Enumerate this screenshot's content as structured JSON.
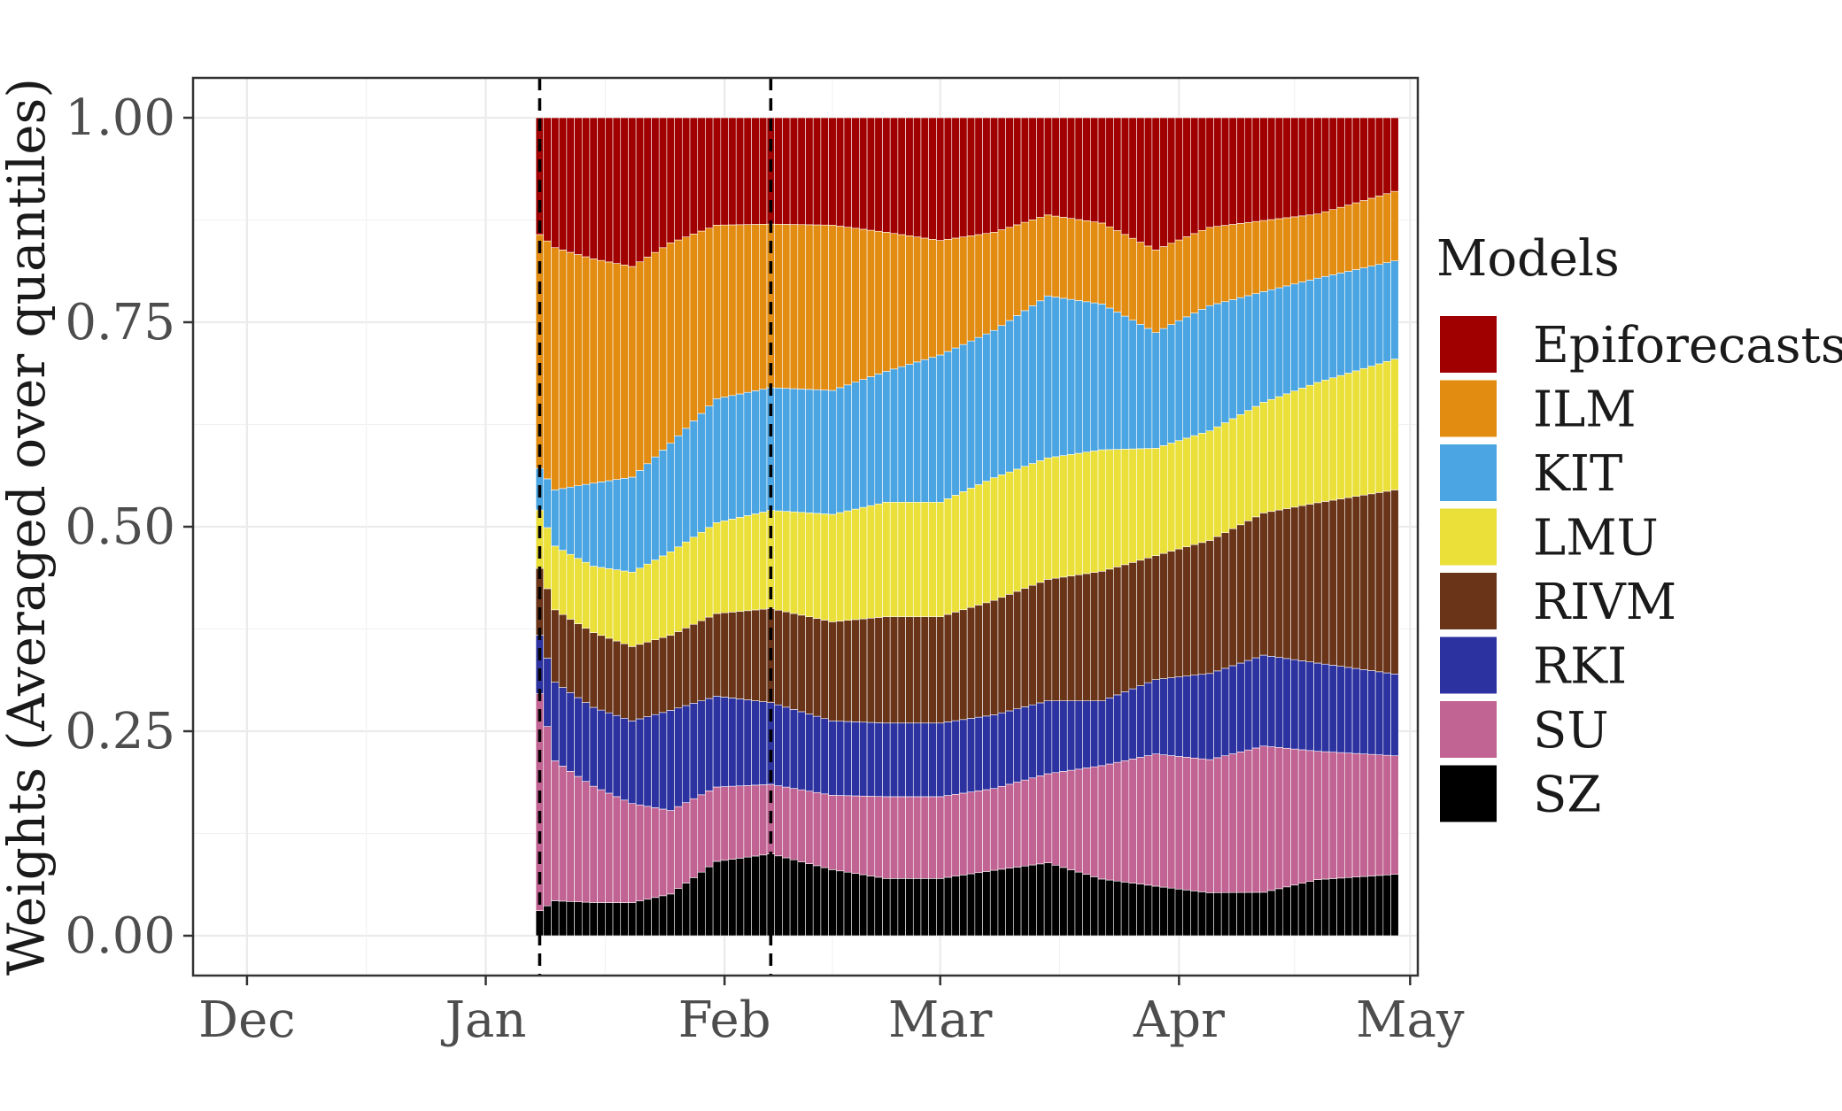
{
  "chart_data": {
    "type": "area",
    "subtype": "stacked-bar",
    "title": "",
    "xlabel": "",
    "ylabel": "Weights (Averaged over quantiles)",
    "ylim": [
      0,
      1
    ],
    "xlim": [
      "2020-11-24",
      "2021-05-02"
    ],
    "x_ticks": [
      {
        "date": "2020-12-01",
        "label": "Dec"
      },
      {
        "date": "2021-01-01",
        "label": "Jan"
      },
      {
        "date": "2021-02-01",
        "label": "Feb"
      },
      {
        "date": "2021-03-01",
        "label": "Mar"
      },
      {
        "date": "2021-04-01",
        "label": "Apr"
      },
      {
        "date": "2021-05-01",
        "label": "May"
      }
    ],
    "y_ticks": [
      0,
      0.25,
      0.5,
      0.75,
      1
    ],
    "y_tick_labels": [
      "0.00",
      "0.25",
      "0.50",
      "0.75",
      "1.00"
    ],
    "grid": true,
    "legend": {
      "title": "Models",
      "position": "right"
    },
    "vlines": [
      "2021-01-08",
      "2021-02-07"
    ],
    "x_start": "2021-01-08",
    "x_end": "2021-04-29",
    "series": [
      {
        "name": "SZ",
        "color": "#000000",
        "knots": [
          [
            "2021-01-08",
            0.03
          ],
          [
            "2021-01-10",
            0.04
          ],
          [
            "2021-01-20",
            0.04
          ],
          [
            "2021-01-25",
            0.05
          ],
          [
            "2021-01-31",
            0.09
          ],
          [
            "2021-02-07",
            0.1
          ],
          [
            "2021-02-15",
            0.08
          ],
          [
            "2021-02-22",
            0.07
          ],
          [
            "2021-03-01",
            0.07
          ],
          [
            "2021-03-08",
            0.08
          ],
          [
            "2021-03-15",
            0.09
          ],
          [
            "2021-03-22",
            0.07
          ],
          [
            "2021-03-29",
            0.06
          ],
          [
            "2021-04-05",
            0.055
          ],
          [
            "2021-04-12",
            0.055
          ],
          [
            "2021-04-19",
            0.07
          ],
          [
            "2021-04-29",
            0.075
          ]
        ]
      },
      {
        "name": "SU",
        "color": "#c16393",
        "knots": [
          [
            "2021-01-08",
            0.26
          ],
          [
            "2021-01-10",
            0.16
          ],
          [
            "2021-01-15",
            0.14
          ],
          [
            "2021-01-20",
            0.12
          ],
          [
            "2021-01-25",
            0.1
          ],
          [
            "2021-01-31",
            0.09
          ],
          [
            "2021-02-07",
            0.085
          ],
          [
            "2021-02-15",
            0.09
          ],
          [
            "2021-02-22",
            0.1
          ],
          [
            "2021-03-01",
            0.1
          ],
          [
            "2021-03-08",
            0.1
          ],
          [
            "2021-03-15",
            0.11
          ],
          [
            "2021-03-22",
            0.14
          ],
          [
            "2021-03-29",
            0.16
          ],
          [
            "2021-04-05",
            0.17
          ],
          [
            "2021-04-12",
            0.185
          ],
          [
            "2021-04-19",
            0.16
          ],
          [
            "2021-04-29",
            0.145
          ]
        ]
      },
      {
        "name": "RKI",
        "color": "#2c32a0",
        "knots": [
          [
            "2021-01-08",
            0.07
          ],
          [
            "2021-01-10",
            0.09
          ],
          [
            "2021-01-20",
            0.1
          ],
          [
            "2021-01-25",
            0.12
          ],
          [
            "2021-01-31",
            0.11
          ],
          [
            "2021-02-07",
            0.1
          ],
          [
            "2021-02-15",
            0.09
          ],
          [
            "2021-02-22",
            0.09
          ],
          [
            "2021-03-01",
            0.09
          ],
          [
            "2021-03-08",
            0.09
          ],
          [
            "2021-03-15",
            0.09
          ],
          [
            "2021-03-22",
            0.08
          ],
          [
            "2021-03-29",
            0.09
          ],
          [
            "2021-04-05",
            0.11
          ],
          [
            "2021-04-12",
            0.115
          ],
          [
            "2021-04-19",
            0.11
          ],
          [
            "2021-04-29",
            0.1
          ]
        ]
      },
      {
        "name": "RIVM",
        "color": "#6a3418",
        "knots": [
          [
            "2021-01-08",
            0.08
          ],
          [
            "2021-01-15",
            0.09
          ],
          [
            "2021-01-25",
            0.09
          ],
          [
            "2021-01-31",
            0.1
          ],
          [
            "2021-02-07",
            0.115
          ],
          [
            "2021-02-15",
            0.12
          ],
          [
            "2021-02-22",
            0.13
          ],
          [
            "2021-03-01",
            0.13
          ],
          [
            "2021-03-08",
            0.14
          ],
          [
            "2021-03-15",
            0.15
          ],
          [
            "2021-03-22",
            0.16
          ],
          [
            "2021-03-29",
            0.15
          ],
          [
            "2021-04-05",
            0.17
          ],
          [
            "2021-04-12",
            0.18
          ],
          [
            "2021-04-19",
            0.2
          ],
          [
            "2021-04-29",
            0.225
          ]
        ]
      },
      {
        "name": "LMU",
        "color": "#ebdf3a",
        "knots": [
          [
            "2021-01-08",
            0.07
          ],
          [
            "2021-01-15",
            0.08
          ],
          [
            "2021-01-25",
            0.1
          ],
          [
            "2021-01-31",
            0.11
          ],
          [
            "2021-02-07",
            0.12
          ],
          [
            "2021-02-15",
            0.13
          ],
          [
            "2021-02-22",
            0.14
          ],
          [
            "2021-03-01",
            0.14
          ],
          [
            "2021-03-08",
            0.15
          ],
          [
            "2021-03-15",
            0.15
          ],
          [
            "2021-03-22",
            0.15
          ],
          [
            "2021-03-29",
            0.13
          ],
          [
            "2021-04-05",
            0.14
          ],
          [
            "2021-04-12",
            0.14
          ],
          [
            "2021-04-19",
            0.15
          ],
          [
            "2021-04-29",
            0.16
          ]
        ]
      },
      {
        "name": "KIT",
        "color": "#4aa5e2",
        "knots": [
          [
            "2021-01-08",
            0.05
          ],
          [
            "2021-01-15",
            0.1
          ],
          [
            "2021-01-25",
            0.13
          ],
          [
            "2021-01-31",
            0.15
          ],
          [
            "2021-02-07",
            0.15
          ],
          [
            "2021-02-15",
            0.15
          ],
          [
            "2021-02-22",
            0.16
          ],
          [
            "2021-03-01",
            0.18
          ],
          [
            "2021-03-08",
            0.18
          ],
          [
            "2021-03-15",
            0.2
          ],
          [
            "2021-03-22",
            0.18
          ],
          [
            "2021-03-29",
            0.14
          ],
          [
            "2021-04-05",
            0.16
          ],
          [
            "2021-04-12",
            0.14
          ],
          [
            "2021-04-19",
            0.13
          ],
          [
            "2021-04-29",
            0.12
          ]
        ]
      },
      {
        "name": "ILM",
        "color": "#e28c12",
        "knots": [
          [
            "2021-01-08",
            0.28
          ],
          [
            "2021-01-15",
            0.27
          ],
          [
            "2021-01-25",
            0.24
          ],
          [
            "2021-01-31",
            0.21
          ],
          [
            "2021-02-07",
            0.2
          ],
          [
            "2021-02-15",
            0.2
          ],
          [
            "2021-02-22",
            0.17
          ],
          [
            "2021-03-01",
            0.14
          ],
          [
            "2021-03-08",
            0.12
          ],
          [
            "2021-03-15",
            0.1
          ],
          [
            "2021-03-22",
            0.1
          ],
          [
            "2021-03-29",
            0.1
          ],
          [
            "2021-04-05",
            0.1
          ],
          [
            "2021-04-12",
            0.09
          ],
          [
            "2021-04-19",
            0.08
          ],
          [
            "2021-04-29",
            0.085
          ]
        ]
      },
      {
        "name": "Epiforecasts",
        "color": "#a10000",
        "knots": [
          [
            "2021-01-08",
            0.14
          ],
          [
            "2021-01-15",
            0.17
          ],
          [
            "2021-01-20",
            0.18
          ],
          [
            "2021-01-25",
            0.15
          ],
          [
            "2021-01-31",
            0.13
          ],
          [
            "2021-02-07",
            0.13
          ],
          [
            "2021-02-15",
            0.13
          ],
          [
            "2021-02-22",
            0.14
          ],
          [
            "2021-03-01",
            0.15
          ],
          [
            "2021-03-08",
            0.14
          ],
          [
            "2021-03-15",
            0.12
          ],
          [
            "2021-03-22",
            0.13
          ],
          [
            "2021-03-29",
            0.16
          ],
          [
            "2021-04-05",
            0.14
          ],
          [
            "2021-04-12",
            0.13
          ],
          [
            "2021-04-19",
            0.12
          ],
          [
            "2021-04-29",
            0.09
          ]
        ]
      }
    ]
  }
}
